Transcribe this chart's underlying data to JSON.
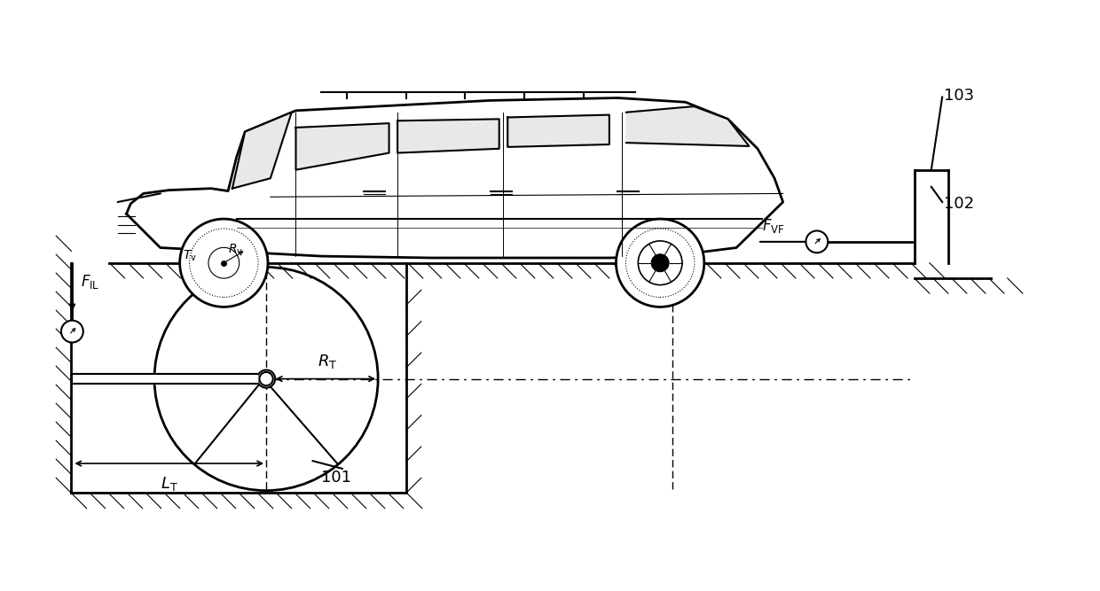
{
  "bg_color": "#ffffff",
  "line_color": "#000000",
  "dash_color": "#000000",
  "hatch_color": "#000000",
  "figsize": [
    12.4,
    6.67
  ],
  "dpi": 100,
  "labels": {
    "Tv": "$T_{\\mathrm{v}}$",
    "Rv": "$R_{\\mathrm{v}}$",
    "FIL": "$F_{\\mathrm{IL}}$",
    "RT": "$R_{\\mathrm{T}}$",
    "LT": "$L_{\\mathrm{T}}$",
    "FVF": "$F_{\\mathrm{VF}}$",
    "label_101": "101",
    "label_102": "102",
    "label_103": "103"
  }
}
